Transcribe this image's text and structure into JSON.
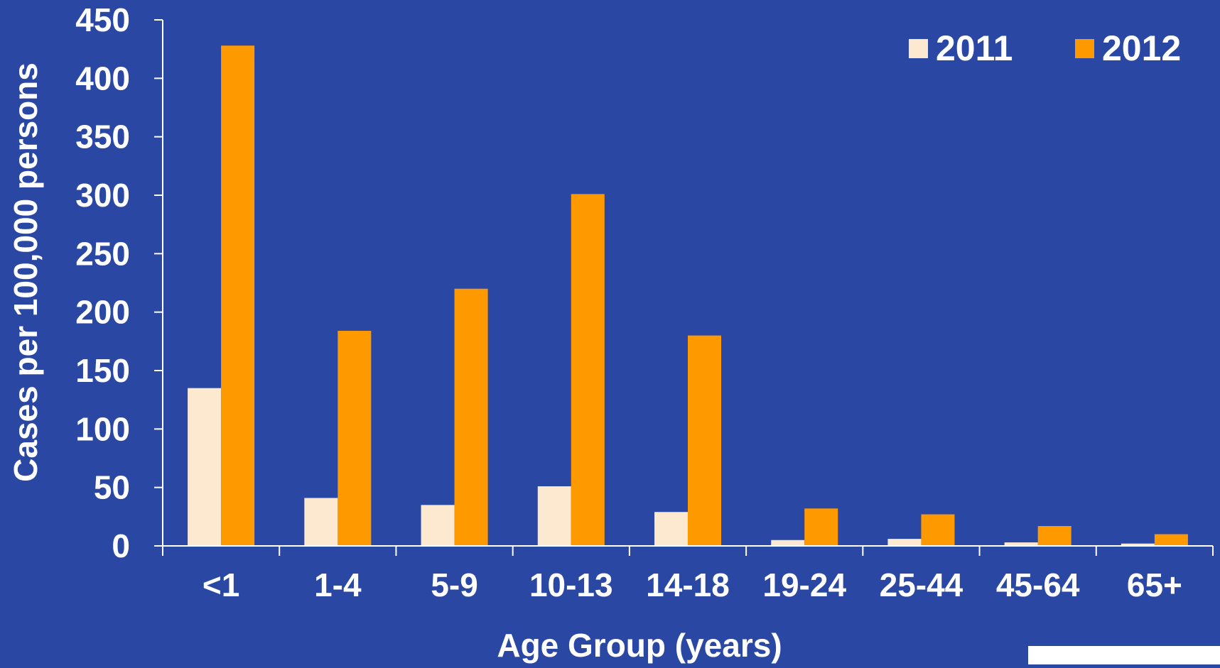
{
  "chart_data": {
    "type": "bar",
    "categories": [
      "<1",
      "1-4",
      "5-9",
      "10-13",
      "14-18",
      "19-24",
      "25-44",
      "45-64",
      "65+"
    ],
    "series": [
      {
        "name": "2011",
        "values": [
          135,
          41,
          35,
          51,
          29,
          5,
          6,
          3,
          2
        ]
      },
      {
        "name": "2012",
        "values": [
          428,
          184,
          220,
          301,
          180,
          32,
          27,
          17,
          10
        ]
      }
    ],
    "title": "",
    "xlabel": "Age Group (years)",
    "ylabel": "Cases per 100,000 persons",
    "ylim": [
      0,
      450
    ],
    "yticks": [
      0,
      50,
      100,
      150,
      200,
      250,
      300,
      350,
      400,
      450
    ],
    "grid": false,
    "legend_position": "top-right"
  },
  "colors": {
    "background": "#2a48a3",
    "series_2011": "#fde9d0",
    "series_2012": "#ff9900",
    "axis": "#ffffff",
    "text": "#ffffff"
  }
}
